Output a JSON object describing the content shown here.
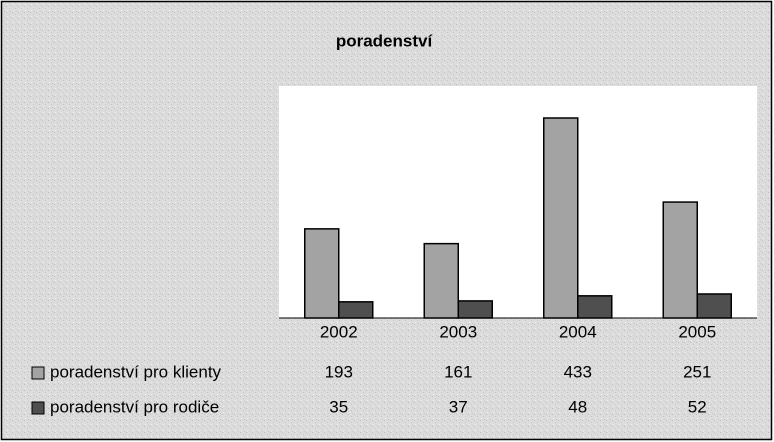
{
  "chart_data": {
    "type": "bar",
    "title": "poradenství",
    "categories": [
      "2002",
      "2003",
      "2004",
      "2005"
    ],
    "series": [
      {
        "name": "poradenství pro klienty",
        "color": "#a3a3a3",
        "values": [
          193,
          161,
          433,
          251
        ]
      },
      {
        "name": "poradenství pro rodiče",
        "color": "#4f4f4f",
        "values": [
          35,
          37,
          48,
          52
        ]
      }
    ]
  }
}
